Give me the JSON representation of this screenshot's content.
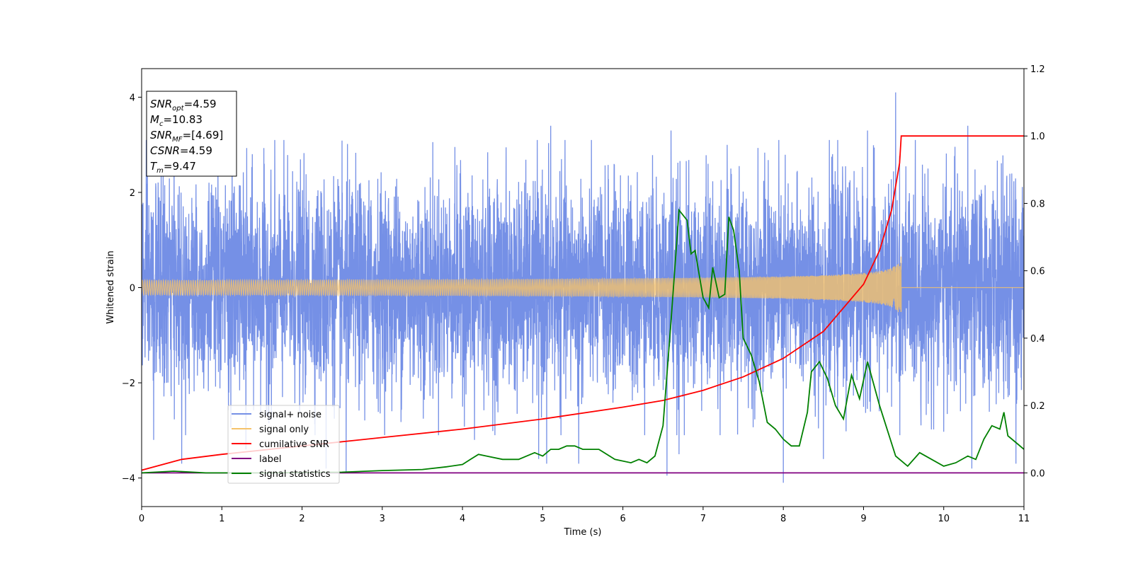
{
  "chart_data": {
    "type": "line",
    "xlabel": "Time (s)",
    "ylabel": "Whitened strain",
    "xlim": [
      0,
      11
    ],
    "ylim": [
      -4.6,
      4.6
    ],
    "y2lim": [
      -0.1,
      1.2
    ],
    "x_ticks": [
      "0",
      "1",
      "2",
      "3",
      "4",
      "5",
      "6",
      "7",
      "8",
      "9",
      "10",
      "11"
    ],
    "y_ticks": [
      "−4",
      "−2",
      "0",
      "2",
      "4"
    ],
    "y2_ticks": [
      "0.0",
      "0.2",
      "0.4",
      "0.6",
      "0.8",
      "1.0",
      "1.2"
    ],
    "grid": false,
    "legend_position": "lower-left",
    "info_box": {
      "lines": [
        {
          "main": "SNR",
          "sub": "opt",
          "value": "=4.59"
        },
        {
          "main": "M",
          "sub": "c",
          "value": "=10.83"
        },
        {
          "main": "SNR",
          "sub": "MF",
          "value": "=[4.69]"
        },
        {
          "main": "CSNR",
          "sub": "",
          "value": "=4.59"
        },
        {
          "main": "T",
          "sub": "m",
          "value": "=9.47"
        }
      ]
    },
    "series": [
      {
        "name": "signal+ noise",
        "color": "#7590e6",
        "axis": "left",
        "kind": "noise",
        "center": 0,
        "typical_amplitude": 1.8,
        "spikes": [
          [
            0.15,
            -3.2
          ],
          [
            0.5,
            -3.7
          ],
          [
            1.3,
            -3.4
          ],
          [
            2.3,
            -3.8
          ],
          [
            2.55,
            -3.9
          ],
          [
            4.15,
            -3.2
          ],
          [
            4.95,
            -3.6
          ],
          [
            5.05,
            -3.7
          ],
          [
            5.1,
            3.4
          ],
          [
            5.45,
            -3.7
          ],
          [
            6.55,
            -3.95
          ],
          [
            6.6,
            3.3
          ],
          [
            6.7,
            -3.5
          ],
          [
            7.3,
            3.0
          ],
          [
            8.0,
            -4.1
          ],
          [
            8.5,
            -3.6
          ],
          [
            9.05,
            3.3
          ],
          [
            9.4,
            4.1
          ],
          [
            10.3,
            3.4
          ],
          [
            10.35,
            -3.8
          ],
          [
            10.9,
            -3.7
          ]
        ]
      },
      {
        "name": "signal only",
        "color": "#f5c26b",
        "axis": "left",
        "kind": "chirp",
        "merger_time": 9.47,
        "peak_amplitude": 0.72
      },
      {
        "name": "cumilative SNR",
        "color": "#ff0000",
        "axis": "right",
        "x": [
          0,
          0.5,
          1,
          2,
          3,
          4,
          5,
          6,
          6.5,
          7,
          7.5,
          8,
          8.5,
          9,
          9.2,
          9.35,
          9.45,
          9.47,
          11
        ],
        "y": [
          0.008,
          0.04,
          0.055,
          0.08,
          0.105,
          0.13,
          0.16,
          0.195,
          0.215,
          0.245,
          0.285,
          0.34,
          0.42,
          0.56,
          0.66,
          0.78,
          0.92,
          1.0,
          1.0
        ]
      },
      {
        "name": "label",
        "color": "#800080",
        "axis": "right",
        "x": [
          0,
          11
        ],
        "y": [
          0,
          0
        ]
      },
      {
        "name": "signal statistics",
        "color": "#008000",
        "axis": "right",
        "x": [
          0,
          0.4,
          0.8,
          1.5,
          2.5,
          3.0,
          3.5,
          3.8,
          4.0,
          4.1,
          4.2,
          4.3,
          4.5,
          4.7,
          4.9,
          5.0,
          5.1,
          5.2,
          5.3,
          5.4,
          5.5,
          5.7,
          5.9,
          6.1,
          6.2,
          6.3,
          6.4,
          6.5,
          6.6,
          6.7,
          6.8,
          6.85,
          6.9,
          7.0,
          7.07,
          7.12,
          7.2,
          7.27,
          7.32,
          7.38,
          7.45,
          7.5,
          7.6,
          7.7,
          7.8,
          7.9,
          8.0,
          8.1,
          8.2,
          8.3,
          8.35,
          8.45,
          8.55,
          8.65,
          8.75,
          8.85,
          8.95,
          9.05,
          9.2,
          9.4,
          9.55,
          9.7,
          10.0,
          10.15,
          10.3,
          10.4,
          10.5,
          10.6,
          10.7,
          10.75,
          10.8,
          10.9,
          11.0
        ],
        "y": [
          0.0,
          0.005,
          0.0,
          0.0,
          0.002,
          0.007,
          0.01,
          0.018,
          0.025,
          0.04,
          0.055,
          0.05,
          0.04,
          0.04,
          0.06,
          0.05,
          0.07,
          0.07,
          0.08,
          0.08,
          0.07,
          0.07,
          0.04,
          0.03,
          0.04,
          0.03,
          0.05,
          0.14,
          0.45,
          0.78,
          0.75,
          0.65,
          0.66,
          0.52,
          0.49,
          0.61,
          0.52,
          0.53,
          0.76,
          0.72,
          0.6,
          0.4,
          0.35,
          0.27,
          0.15,
          0.13,
          0.1,
          0.08,
          0.08,
          0.18,
          0.3,
          0.33,
          0.28,
          0.2,
          0.16,
          0.29,
          0.22,
          0.33,
          0.2,
          0.05,
          0.02,
          0.06,
          0.02,
          0.03,
          0.05,
          0.04,
          0.1,
          0.14,
          0.13,
          0.18,
          0.11,
          0.09,
          0.07
        ]
      }
    ]
  }
}
